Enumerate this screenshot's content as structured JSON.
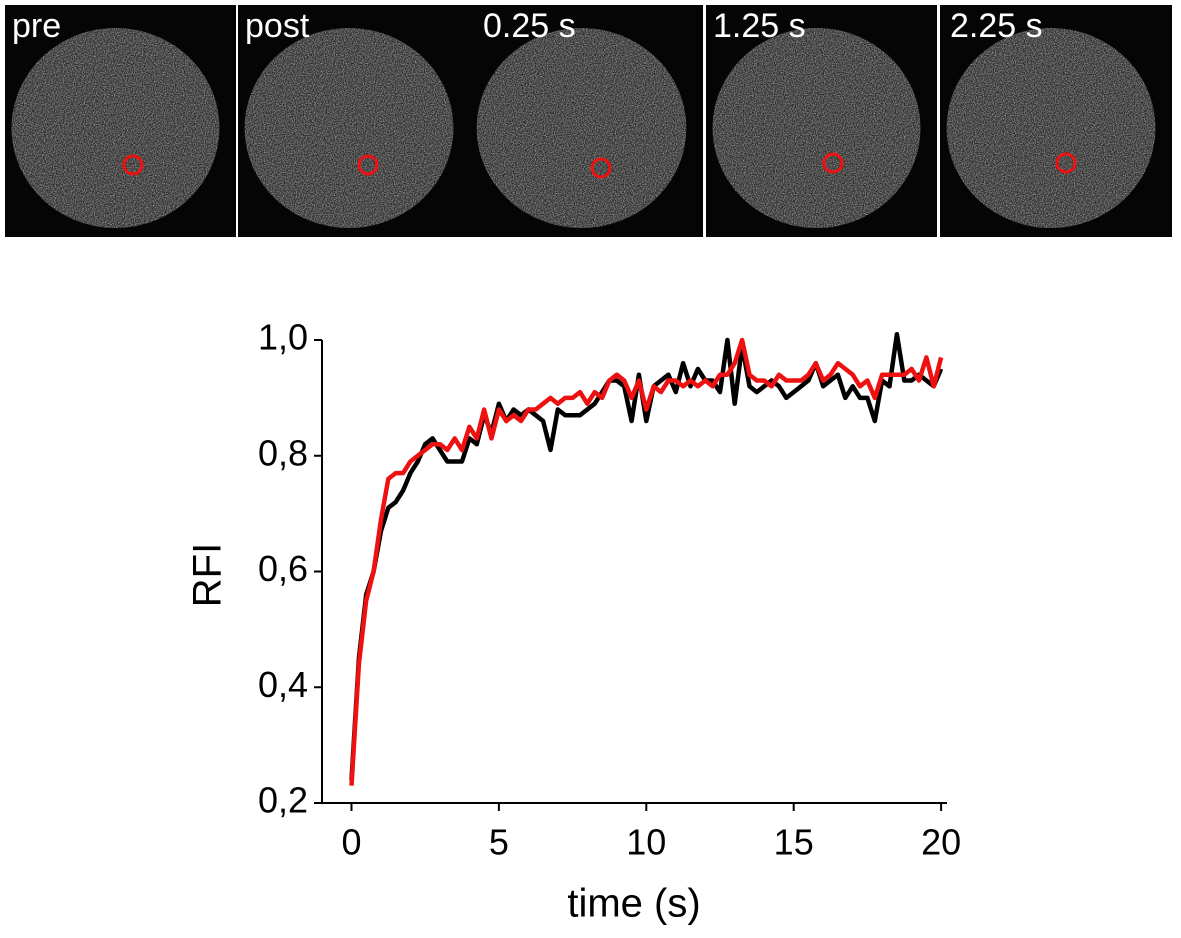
{
  "panels": [
    {
      "label": "pre"
    },
    {
      "label": "post"
    },
    {
      "label": "0.25 s"
    },
    {
      "label": "1.25 s"
    },
    {
      "label": "2.25 s"
    }
  ],
  "chart_data": {
    "type": "line",
    "ylabel": "RFI",
    "xlabel": "time (s)",
    "x": [
      0,
      0.25,
      0.5,
      0.75,
      1,
      1.25,
      1.5,
      1.75,
      2,
      2.25,
      2.5,
      2.75,
      3,
      3.25,
      3.5,
      3.75,
      4,
      4.25,
      4.5,
      4.75,
      5,
      5.25,
      5.5,
      5.75,
      6,
      6.25,
      6.5,
      6.75,
      7,
      7.25,
      7.5,
      7.75,
      8,
      8.25,
      8.5,
      8.75,
      9,
      9.25,
      9.5,
      9.75,
      10,
      10.25,
      10.5,
      10.75,
      11,
      11.25,
      11.5,
      11.75,
      12,
      12.25,
      12.5,
      12.75,
      13,
      13.25,
      13.5,
      13.75,
      14,
      14.25,
      14.5,
      14.75,
      15,
      15.25,
      15.5,
      15.75,
      16,
      16.25,
      16.5,
      16.75,
      17,
      17.25,
      17.5,
      17.75,
      18,
      18.25,
      18.5,
      18.75,
      19,
      19.25,
      19.5,
      19.75,
      20
    ],
    "series": [
      {
        "color": "#000000",
        "values": [
          0.24,
          0.45,
          0.56,
          0.6,
          0.67,
          0.71,
          0.72,
          0.74,
          0.77,
          0.79,
          0.82,
          0.83,
          0.81,
          0.79,
          0.79,
          0.79,
          0.83,
          0.82,
          0.87,
          0.84,
          0.89,
          0.86,
          0.88,
          0.87,
          0.88,
          0.87,
          0.86,
          0.81,
          0.88,
          0.87,
          0.87,
          0.87,
          0.88,
          0.89,
          0.91,
          0.93,
          0.93,
          0.92,
          0.86,
          0.94,
          0.86,
          0.92,
          0.93,
          0.94,
          0.91,
          0.96,
          0.92,
          0.95,
          0.93,
          0.93,
          0.91,
          1.0,
          0.89,
          0.99,
          0.92,
          0.91,
          0.92,
          0.93,
          0.92,
          0.9,
          0.91,
          0.92,
          0.93,
          0.96,
          0.92,
          0.93,
          0.94,
          0.9,
          0.92,
          0.9,
          0.9,
          0.86,
          0.93,
          0.92,
          1.01,
          0.93,
          0.93,
          0.94,
          0.93,
          0.92,
          0.95
        ]
      },
      {
        "color": "#ee1111",
        "values": [
          0.23,
          0.44,
          0.55,
          0.6,
          0.69,
          0.76,
          0.77,
          0.77,
          0.79,
          0.8,
          0.81,
          0.82,
          0.82,
          0.81,
          0.83,
          0.81,
          0.85,
          0.83,
          0.88,
          0.83,
          0.88,
          0.86,
          0.87,
          0.86,
          0.88,
          0.88,
          0.89,
          0.9,
          0.89,
          0.9,
          0.9,
          0.91,
          0.89,
          0.91,
          0.9,
          0.93,
          0.94,
          0.93,
          0.9,
          0.93,
          0.88,
          0.92,
          0.91,
          0.93,
          0.93,
          0.92,
          0.93,
          0.92,
          0.93,
          0.92,
          0.94,
          0.94,
          0.96,
          1.0,
          0.94,
          0.93,
          0.93,
          0.92,
          0.94,
          0.93,
          0.93,
          0.93,
          0.94,
          0.96,
          0.93,
          0.94,
          0.96,
          0.95,
          0.94,
          0.92,
          0.93,
          0.9,
          0.94,
          0.94,
          0.94,
          0.94,
          0.95,
          0.93,
          0.97,
          0.92,
          0.97
        ]
      }
    ],
    "xlim": [
      -1,
      20.2
    ],
    "ylim": [
      0.2,
      1.0
    ],
    "xticks": [
      0,
      5,
      10,
      15,
      20
    ],
    "yticks": [
      {
        "value": 0.2,
        "label": "0,2"
      },
      {
        "value": 0.4,
        "label": "0,4"
      },
      {
        "value": 0.6,
        "label": "0,6"
      },
      {
        "value": 0.8,
        "label": "0,8"
      },
      {
        "value": 1.0,
        "label": "1,0"
      }
    ]
  }
}
